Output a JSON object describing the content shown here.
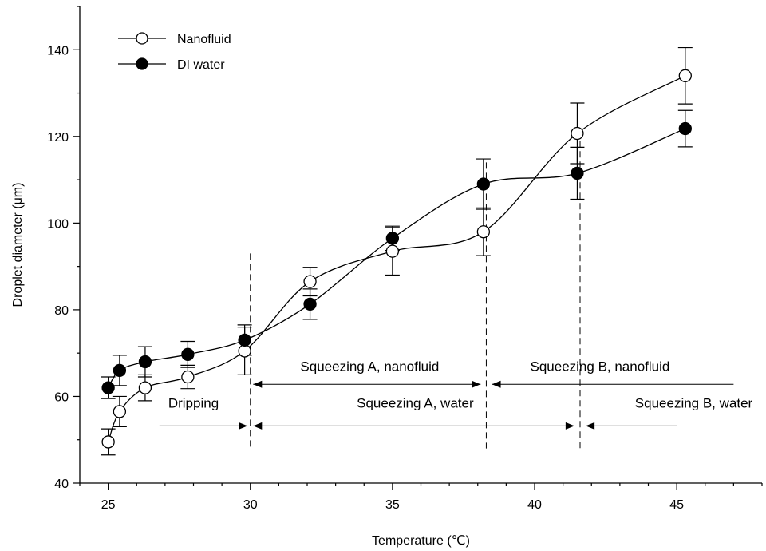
{
  "chart_data": {
    "type": "scatter",
    "xlabel": "Temperature (℃)",
    "ylabel": "Droplet diameter (μm)",
    "xlim": [
      24,
      48
    ],
    "ylim": [
      40,
      150
    ],
    "x_ticks": [
      25,
      30,
      35,
      40,
      45
    ],
    "y_ticks": [
      40,
      60,
      80,
      100,
      120,
      140
    ],
    "grid": false,
    "legend_position": "top-left",
    "series": [
      {
        "name": "Nanofluid",
        "marker": "open-circle",
        "x": [
          25.0,
          25.4,
          26.3,
          27.8,
          29.8,
          32.1,
          35.0,
          38.2,
          41.5,
          45.3
        ],
        "y": [
          49.5,
          56.5,
          62.0,
          64.5,
          70.5,
          86.5,
          93.5,
          98.0,
          120.7,
          134.0
        ],
        "err": [
          3.0,
          3.5,
          3.0,
          2.7,
          5.5,
          3.3,
          5.5,
          5.5,
          7.0,
          6.5
        ]
      },
      {
        "name": "DI water",
        "marker": "filled-circle",
        "x": [
          25.0,
          25.4,
          26.3,
          27.8,
          29.8,
          32.1,
          35.0,
          38.2,
          41.5,
          45.3
        ],
        "y": [
          62.0,
          66.0,
          68.0,
          69.7,
          73.0,
          81.3,
          96.5,
          109.0,
          111.5,
          121.8
        ],
        "err": [
          2.5,
          3.5,
          3.5,
          3.0,
          3.5,
          3.5,
          2.8,
          5.8,
          6.0,
          4.2
        ]
      }
    ],
    "regime_boundaries": [
      30,
      38.3,
      41.6
    ],
    "annotations": [
      {
        "label": "Dripping",
        "label_x": 28.0,
        "label_y": 58.5,
        "arrow_y": 53.2,
        "x_from": 26.8,
        "x_to": 29.9,
        "head_start": false,
        "head_end": true
      },
      {
        "label": "Squeezing A, nanofluid",
        "label_x": 34.2,
        "label_y": 67.0,
        "arrow_y": 62.8,
        "x_from": 30.1,
        "x_to": 38.1,
        "head_start": true,
        "head_end": true
      },
      {
        "label": "Squeezing B, nanofluid",
        "label_x": 42.3,
        "label_y": 67.0,
        "arrow_y": 62.8,
        "x_from": 38.5,
        "x_to": 47.0,
        "head_start": true,
        "head_end": false
      },
      {
        "label": "Squeezing A, water",
        "label_x": 35.8,
        "label_y": 58.5,
        "arrow_y": 53.2,
        "x_from": 30.1,
        "x_to": 41.4,
        "head_start": true,
        "head_end": true
      },
      {
        "label": "Squeezing B, water",
        "label_x": 45.6,
        "label_y": 58.5,
        "arrow_y": 53.2,
        "x_from": 41.8,
        "x_to": 45.0,
        "head_start": true,
        "head_end": false
      }
    ]
  }
}
